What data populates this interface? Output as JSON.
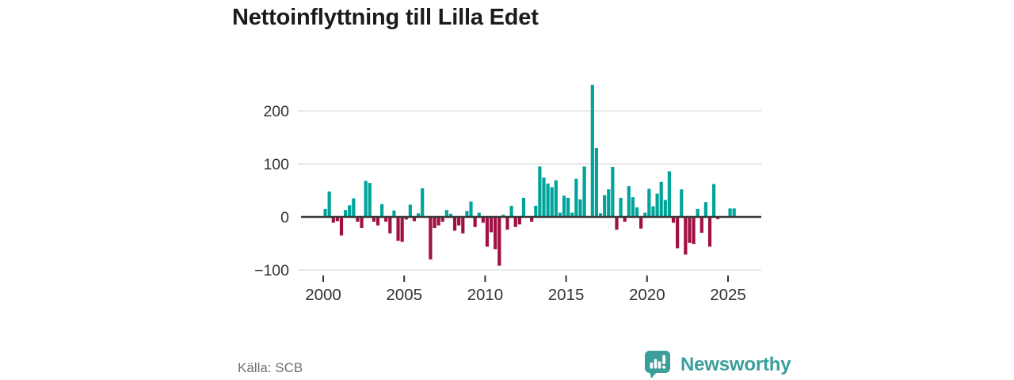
{
  "title": "Nettoinflyttning till Lilla Edet",
  "source": "Källa: SCB",
  "brand": {
    "name": "Newsworthy",
    "color": "#3b9e9b",
    "icon": "bar-chart-speech-bubble-icon"
  },
  "colors": {
    "positive": "#00a49a",
    "negative": "#a11045",
    "grid": "#e2e2e2",
    "zero_line": "#3a3a3a",
    "axis_text": "#333333",
    "title_text": "#1b1b19",
    "source_text": "#6e717a"
  },
  "chart_data": {
    "type": "bar",
    "title": "Nettoinflyttning till Lilla Edet",
    "xlabel": "",
    "ylabel": "",
    "x_unit": "quarter",
    "start": "2000 Q1",
    "end": "2025 Q2",
    "x_ticks": [
      2000,
      2005,
      2010,
      2015,
      2020,
      2025
    ],
    "y_ticks": [
      -100,
      0,
      100,
      200
    ],
    "ylim": [
      -100,
      260
    ],
    "grid": true,
    "legend": "none",
    "series": [
      {
        "name": "Nettoinflyttning",
        "values": [
          15,
          48,
          -11,
          -8,
          -35,
          13,
          22,
          35,
          -9,
          -21,
          68,
          64,
          -9,
          -16,
          24,
          -9,
          -31,
          12,
          -45,
          -47,
          -5,
          23,
          -8,
          7,
          54,
          0,
          -80,
          -21,
          -16,
          -9,
          13,
          6,
          -26,
          -16,
          -31,
          11,
          29,
          -19,
          8,
          -11,
          -56,
          -29,
          -61,
          -92,
          4,
          -24,
          21,
          -19,
          -14,
          36,
          0,
          -9,
          21,
          95,
          74,
          63,
          56,
          69,
          8,
          40,
          36,
          8,
          72,
          33,
          95,
          0,
          249,
          130,
          7,
          41,
          52,
          94,
          -24,
          36,
          -9,
          58,
          37,
          18,
          -22,
          8,
          53,
          20,
          44,
          66,
          32,
          86,
          -11,
          -59,
          52,
          -71,
          -49,
          -51,
          15,
          -30,
          28,
          -56,
          62,
          -4,
          0,
          0,
          16,
          16
        ]
      }
    ]
  }
}
